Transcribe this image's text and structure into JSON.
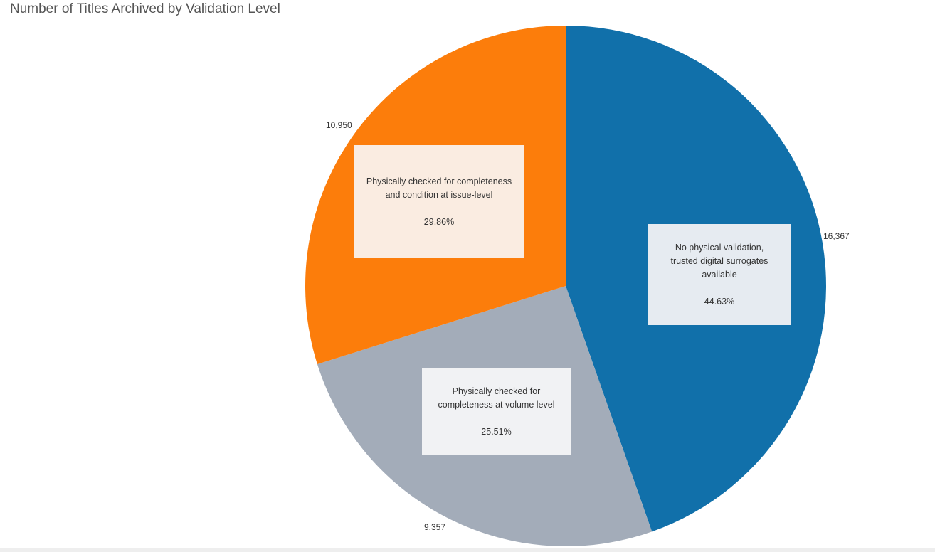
{
  "chart_data": {
    "type": "pie",
    "title": "Number of Titles Archived by Validation Level",
    "slices": [
      {
        "label": "No physical validation, trusted digital surrogates available",
        "label_lines": [
          "No physical validation,",
          "trusted digital surrogates",
          "available"
        ],
        "value": 16367,
        "value_text": "16,367",
        "percent_text": "44.63%",
        "color": "#1170aa",
        "box_color": "#e6ebf1"
      },
      {
        "label": "Physically checked for completeness at volume level",
        "label_lines": [
          "Physically checked for",
          "completeness at volume level"
        ],
        "value": 9357,
        "value_text": "9,357",
        "percent_text": "25.51%",
        "color": "#a3acb9",
        "box_color": "#f1f2f4"
      },
      {
        "label": "Physically checked for completeness and condition at issue-level",
        "label_lines": [
          "Physically checked for completeness",
          "and condition at issue-level"
        ],
        "value": 10950,
        "value_text": "10,950",
        "percent_text": "29.86%",
        "color": "#fc7d0b",
        "box_color": "#faece1"
      }
    ]
  }
}
